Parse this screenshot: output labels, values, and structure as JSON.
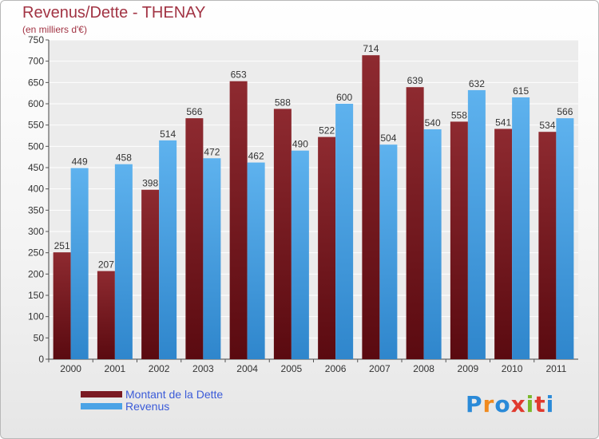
{
  "header": {
    "title": "Revenus/Dette - THENAY",
    "subtitle": "(en milliers d'€)"
  },
  "colors": {
    "dette": "#7a1a22",
    "revenus": "#4aa3e6",
    "text": "#a23444",
    "legend_text": "#3b5bd8"
  },
  "chart_data": {
    "type": "bar",
    "title": "Revenus/Dette - THENAY",
    "subtitle": "(en milliers d'€)",
    "categories": [
      "2000",
      "2001",
      "2002",
      "2003",
      "2004",
      "2005",
      "2006",
      "2007",
      "2008",
      "2009",
      "2010",
      "2011"
    ],
    "series": [
      {
        "name": "Montant de la Dette",
        "values": [
          251,
          207,
          398,
          566,
          653,
          588,
          522,
          714,
          639,
          558,
          541,
          534
        ]
      },
      {
        "name": "Revenus",
        "values": [
          449,
          458,
          514,
          472,
          462,
          490,
          600,
          504,
          540,
          632,
          615,
          566
        ]
      }
    ],
    "ylim": [
      0,
      750
    ],
    "yticks": [
      0,
      50,
      100,
      150,
      200,
      250,
      300,
      350,
      400,
      450,
      500,
      550,
      600,
      650,
      700,
      750
    ],
    "grid": true,
    "legend_position": "bottom-left"
  },
  "legend": {
    "items": [
      {
        "label": "Montant de la Dette"
      },
      {
        "label": "Revenus"
      }
    ]
  },
  "logo": {
    "letters": [
      "P",
      "r",
      "o",
      "x",
      "i",
      "t",
      "i"
    ],
    "colors": [
      "#2a8ad8",
      "#f08a1e",
      "#2a8ad8",
      "#e03a2e",
      "#7ab82a",
      "#e03a2e",
      "#2a8ad8"
    ]
  }
}
